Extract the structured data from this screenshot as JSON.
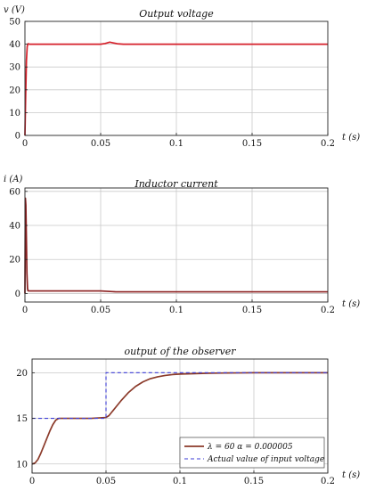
{
  "colors": {
    "voltage": "#d6202a",
    "current": "#8a1f1f",
    "observer": "#8b3a2a",
    "actual": "#3b3bd6",
    "grid": "#c9c9c9",
    "axis": "#222222"
  },
  "chart_data": [
    {
      "type": "line",
      "title": "Output   voltage",
      "xlabel": "t (s)",
      "ylabel": "v (V)",
      "xlim": [
        0,
        0.2
      ],
      "ylim": [
        0,
        50
      ],
      "grid": true,
      "xticks": [
        {
          "value": 0,
          "label": "0"
        },
        {
          "value": 0.05,
          "label": "0.05"
        },
        {
          "value": 0.1,
          "label": "0.1"
        },
        {
          "value": 0.15,
          "label": "0.15"
        },
        {
          "value": 0.2,
          "label": "0.2"
        }
      ],
      "yticks": [
        {
          "value": 0,
          "label": "0"
        },
        {
          "value": 10,
          "label": "10"
        },
        {
          "value": 20,
          "label": "20"
        },
        {
          "value": 30,
          "label": "30"
        },
        {
          "value": 40,
          "label": "40"
        },
        {
          "value": 50,
          "label": "50"
        }
      ],
      "series": [
        {
          "color": "voltage",
          "x": [
            0,
            0.0005,
            0.001,
            0.0015,
            0.002,
            0.003,
            0.01,
            0.05,
            0.053,
            0.056,
            0.058,
            0.061,
            0.065,
            0.1,
            0.15,
            0.2
          ],
          "y": [
            0,
            18,
            33,
            39,
            40.2,
            40,
            40,
            40,
            40.3,
            40.9,
            40.6,
            40.2,
            40,
            40,
            40,
            40
          ]
        }
      ]
    },
    {
      "type": "line",
      "title": "Inductor   current",
      "xlabel": "t (s)",
      "ylabel": "i (A)",
      "xlim": [
        0,
        0.2
      ],
      "ylim": [
        -5,
        62
      ],
      "grid": true,
      "xticks": [
        {
          "value": 0,
          "label": "0"
        },
        {
          "value": 0.05,
          "label": "0.05"
        },
        {
          "value": 0.1,
          "label": "0.1"
        },
        {
          "value": 0.15,
          "label": "0.15"
        },
        {
          "value": 0.2,
          "label": "0.2"
        }
      ],
      "yticks": [
        {
          "value": 0,
          "label": "0"
        },
        {
          "value": 20,
          "label": "20"
        },
        {
          "value": 40,
          "label": "40"
        },
        {
          "value": 60,
          "label": "60"
        }
      ],
      "series": [
        {
          "color": "current",
          "x": [
            0,
            0.0003,
            0.0006,
            0.001,
            0.0013,
            0.0017,
            0.002,
            0.003,
            0.005,
            0.01,
            0.05,
            0.06,
            0.08,
            0.1,
            0.15,
            0.2
          ],
          "y": [
            0,
            56,
            52,
            30,
            12,
            3,
            1.6,
            1.5,
            1.5,
            1.5,
            1.5,
            1.0,
            1.0,
            1.0,
            1.0,
            1.0
          ]
        }
      ]
    },
    {
      "type": "line",
      "title": "output     of     the     observer",
      "xlabel": "t (s)",
      "ylabel": "",
      "xlim": [
        0,
        0.2
      ],
      "ylim": [
        9,
        21.5
      ],
      "grid": true,
      "legend": "bottom-right",
      "xticks": [
        {
          "value": 0,
          "label": "0"
        },
        {
          "value": 0.05,
          "label": "0.05"
        },
        {
          "value": 0.1,
          "label": "0.1"
        },
        {
          "value": 0.15,
          "label": "0.15"
        },
        {
          "value": 0.2,
          "label": "0.2"
        }
      ],
      "yticks": [
        {
          "value": 10,
          "label": "10"
        },
        {
          "value": 15,
          "label": "15"
        },
        {
          "value": 20,
          "label": "20"
        }
      ],
      "series": [
        {
          "name": "λ = 60    α = 0.000005",
          "color": "observer",
          "dash": false,
          "x": [
            0,
            0.002,
            0.004,
            0.006,
            0.008,
            0.01,
            0.012,
            0.014,
            0.016,
            0.018,
            0.02,
            0.03,
            0.04,
            0.05,
            0.052,
            0.054,
            0.057,
            0.06,
            0.065,
            0.07,
            0.075,
            0.08,
            0.085,
            0.09,
            0.095,
            0.1,
            0.11,
            0.12,
            0.13,
            0.14,
            0.15,
            0.17,
            0.2
          ],
          "y": [
            10,
            10.1,
            10.5,
            11.2,
            12.0,
            12.8,
            13.6,
            14.3,
            14.8,
            15.0,
            15.0,
            15.0,
            15.0,
            15.1,
            15.3,
            15.7,
            16.3,
            16.9,
            17.8,
            18.5,
            19.0,
            19.35,
            19.55,
            19.7,
            19.8,
            19.85,
            19.9,
            19.95,
            19.97,
            19.98,
            20,
            20,
            20
          ]
        },
        {
          "name": "Actual value of input voltage",
          "color": "actual",
          "dash": true,
          "x": [
            0,
            0.05,
            0.05,
            0.2
          ],
          "y": [
            15,
            15,
            20,
            20
          ]
        }
      ]
    }
  ]
}
